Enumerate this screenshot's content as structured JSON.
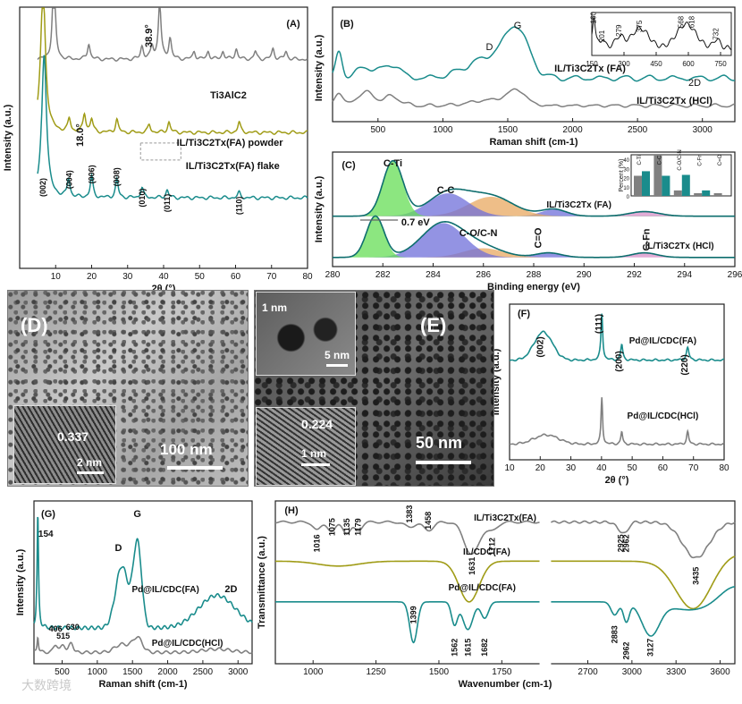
{
  "colors": {
    "gray": "#808080",
    "olive": "#a09c17",
    "teal": "#1a8c8c",
    "green": "#66dd55",
    "blue": "#6f6fd9",
    "orange": "#e8a860",
    "pink": "#d890c8",
    "axis": "#222222",
    "dark_teal": "#0e6e6e"
  },
  "panels": {
    "A": {
      "label": "(A)"
    },
    "B": {
      "label": "(B)"
    },
    "C": {
      "label": "(C)"
    },
    "D": {
      "label": "(D)",
      "scale": "100 nm",
      "inset_scale": "2 nm",
      "spacing": "0.337"
    },
    "E": {
      "label": "(E)",
      "scale": "50 nm",
      "inset1_scale": "5 nm",
      "inset1_label": "1 nm",
      "inset2_scale": "1 nm",
      "spacing": "0.224"
    },
    "F": {
      "label": "(F)"
    },
    "G": {
      "label": "(G)"
    },
    "H": {
      "label": "(H)"
    }
  },
  "watermark": "大数跨境",
  "chart_data": [
    {
      "panel": "A",
      "type": "line",
      "xlabel": "2θ (°)",
      "ylabel": "Intensity (a.u.)",
      "xlim": [
        0,
        80
      ],
      "xticks": [
        10,
        20,
        30,
        40,
        50,
        60,
        70,
        80
      ],
      "series": [
        {
          "name": "Ti3AlC2",
          "color": "gray",
          "baseline": 0.2,
          "peaks": [
            [
              9.5,
              0.35
            ],
            [
              19.2,
              0.06
            ],
            [
              34,
              0.05
            ],
            [
              36.8,
              0.05
            ],
            [
              38.9,
              0.22
            ],
            [
              41.8,
              0.08
            ],
            [
              48.5,
              0.03
            ],
            [
              52.4,
              0.03
            ],
            [
              56.5,
              0.03
            ],
            [
              60.2,
              0.04
            ],
            [
              65.5,
              0.03
            ],
            [
              70.4,
              0.04
            ],
            [
              74,
              0.03
            ]
          ]
        },
        {
          "name": "IL/Ti3C2Tx(FA) powder",
          "color": "olive",
          "baseline": 0.48,
          "peaks": [
            [
              6.5,
              0.55
            ],
            [
              13.8,
              0.05
            ],
            [
              18,
              0.07
            ],
            [
              20,
              0.05
            ],
            [
              27,
              0.05
            ],
            [
              36,
              0.03
            ],
            [
              41.5,
              0.04
            ],
            [
              61,
              0.04
            ]
          ]
        },
        {
          "name": "IL/Ti3C2Tx(FA) flake",
          "color": "teal",
          "baseline": 0.73,
          "peaks": [
            [
              6.8,
              0.55
            ],
            [
              13.6,
              0.07
            ],
            [
              20,
              0.08
            ],
            [
              27,
              0.07
            ],
            [
              34,
              0.04
            ],
            [
              41,
              0.03
            ],
            [
              61,
              0.02
            ]
          ]
        }
      ],
      "annotations": [
        "38.9°",
        "18.0°",
        "Ti3AlC2",
        "IL/Ti3C2Tx(FA) powder",
        "IL/Ti3C2Tx(FA) flake",
        "(002)",
        "(004)",
        "(006)",
        "(008)",
        "(010)",
        "(011)",
        "(110)"
      ]
    },
    {
      "panel": "B",
      "type": "line",
      "xlabel": "Raman shift (cm-1)",
      "ylabel": "Intensity (a.u.)",
      "xlim": [
        150,
        3250
      ],
      "xticks": [
        500,
        1000,
        1500,
        2000,
        2500,
        3000
      ],
      "series": [
        {
          "name": "IL/Ti3C2Tx (FA)",
          "color": "teal"
        },
        {
          "name": "IL/Ti3C2Tx (HCl)",
          "color": "gray"
        }
      ],
      "annotations": [
        "D",
        "G",
        "2D"
      ],
      "inset": {
        "xlim": [
          150,
          800
        ],
        "xticks": [
          150,
          300,
          450,
          600,
          750
        ],
        "peaks": [
          "160",
          "201",
          "279",
          "375",
          "568",
          "618",
          "732"
        ]
      }
    },
    {
      "panel": "C",
      "type": "area",
      "xlabel": "Binding energy (eV)",
      "ylabel": "Intensity (a.u.)",
      "xlim": [
        280,
        296
      ],
      "xticks": [
        280,
        282,
        284,
        286,
        288,
        290,
        292,
        294,
        296
      ],
      "series": [
        {
          "name": "IL/Ti3C2Tx (FA)",
          "components": [
            "C-Ti",
            "C-C",
            "C-O/C-N",
            "C=O",
            "C-Fn"
          ]
        },
        {
          "name": "IL/Ti3C2Tx (HCl)",
          "components": [
            "C-Ti",
            "C-C",
            "C-O/C-N",
            "C=O",
            "C-Fn"
          ]
        }
      ],
      "annotations": [
        "C-Ti",
        "C-C",
        "C-O/C-N",
        "C=O",
        "C-Fn",
        "0.7 eV"
      ],
      "inset": {
        "type": "bar",
        "ylabel": "Percent (%)",
        "yticks": [
          0,
          10,
          20,
          30,
          40
        ],
        "categories": [
          "C-Ti",
          "C-C",
          "C-O/C-N",
          "C-Fn",
          "C=O"
        ],
        "series": [
          {
            "color": "gray",
            "values": [
              22,
              45,
              6,
              3,
              3
            ]
          },
          {
            "color": "teal",
            "values": [
              27,
              22,
              23,
              6,
              0
            ]
          }
        ]
      }
    },
    {
      "panel": "F",
      "type": "line",
      "xlabel": "2θ (°)",
      "ylabel": "Intensity (a.u.)",
      "xlim": [
        10,
        80
      ],
      "xticks": [
        10,
        20,
        30,
        40,
        50,
        60,
        70,
        80
      ],
      "series": [
        {
          "name": "Pd@IL/CDC(FA)",
          "color": "teal",
          "baseline": 0.36
        },
        {
          "name": "Pd@IL/CDC(HCl)",
          "color": "gray",
          "baseline": 0.82
        }
      ],
      "annotations": [
        "(002)",
        "(111)",
        "(200)",
        "(220)"
      ]
    },
    {
      "panel": "G",
      "type": "line",
      "xlabel": "Raman shift (cm-1)",
      "ylabel": "Intensity (a.u.)",
      "xlim": [
        100,
        3200
      ],
      "xticks": [
        500,
        1000,
        1500,
        2000,
        2500,
        3000
      ],
      "series": [
        {
          "name": "Pd@IL/CDC(FA)",
          "color": "teal"
        },
        {
          "name": "Pd@IL/CDC(HCl)",
          "color": "gray"
        }
      ],
      "annotations": [
        "154",
        "D",
        "G",
        "2D",
        "406",
        "515",
        "630"
      ]
    },
    {
      "panel": "H",
      "type": "line",
      "xlabel": "Wavenumber (cm-1)",
      "ylabel": "Transmittance (a.u.)",
      "xticks_left": [
        1000,
        1250,
        1500,
        1750
      ],
      "xticks_right": [
        2700,
        3000,
        3300,
        3600
      ],
      "series": [
        {
          "name": "IL/Ti3C2Tx(FA)",
          "color": "gray"
        },
        {
          "name": "IL/CDC(FA)",
          "color": "olive"
        },
        {
          "name": "Pd@IL/CDC(FA)",
          "color": "teal"
        }
      ],
      "annotations": [
        "1016",
        "1075",
        "1135",
        "1179",
        "1383",
        "1458",
        "1631",
        "1712",
        "2925",
        "2962",
        "3435",
        "1399",
        "1562",
        "1615",
        "1682",
        "2883",
        "2962",
        "3127"
      ]
    }
  ]
}
